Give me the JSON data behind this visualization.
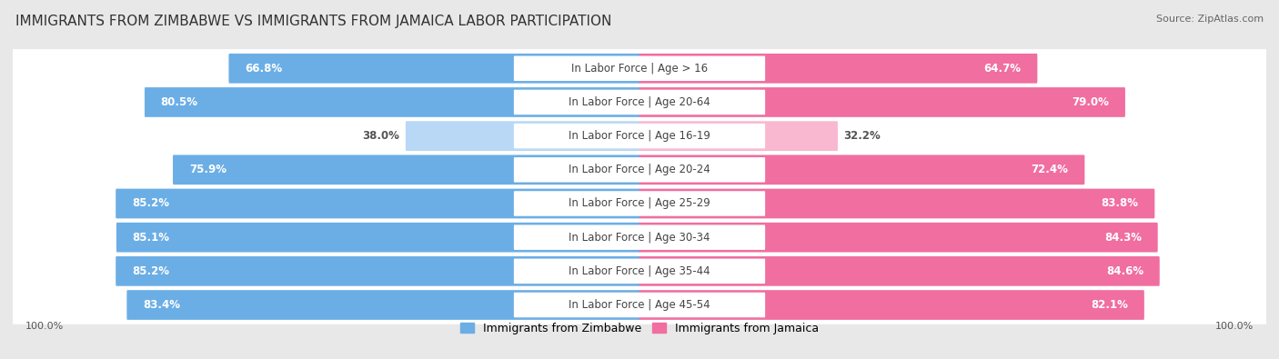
{
  "title": "IMMIGRANTS FROM ZIMBABWE VS IMMIGRANTS FROM JAMAICA LABOR PARTICIPATION",
  "source": "Source: ZipAtlas.com",
  "categories": [
    "In Labor Force | Age > 16",
    "In Labor Force | Age 20-64",
    "In Labor Force | Age 16-19",
    "In Labor Force | Age 20-24",
    "In Labor Force | Age 25-29",
    "In Labor Force | Age 30-34",
    "In Labor Force | Age 35-44",
    "In Labor Force | Age 45-54"
  ],
  "zimbabwe_values": [
    66.8,
    80.5,
    38.0,
    75.9,
    85.2,
    85.1,
    85.2,
    83.4
  ],
  "jamaica_values": [
    64.7,
    79.0,
    32.2,
    72.4,
    83.8,
    84.3,
    84.6,
    82.1
  ],
  "zimbabwe_color": "#6baee6",
  "zimbabwe_light_color": "#b8d8f5",
  "jamaica_color": "#f06ea0",
  "jamaica_light_color": "#f9b8d0",
  "threshold": 50,
  "bg_color": "#e8e8e8",
  "row_bg_color": "#f0f0f0",
  "title_fontsize": 11,
  "label_fontsize": 8.5,
  "value_fontsize": 8.5,
  "legend_fontsize": 9,
  "source_fontsize": 8
}
